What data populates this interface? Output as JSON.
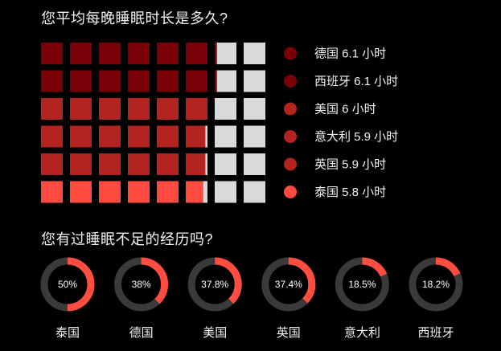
{
  "titles": {
    "sleep_hours": "您平均每晚睡眠时长是多久?",
    "sleep_deprivation": "您有过睡眠不足的经历吗?"
  },
  "colors": {
    "background": "#000000",
    "empty_cell": "#d9d9d9",
    "ring_track": "#3a3a3a",
    "ring_fill": "#ff4d40"
  },
  "chart_data": [
    {
      "type": "waffle",
      "title": "您平均每晚睡眠时长是多久?",
      "max_value": 8,
      "unit": "小时",
      "series": [
        {
          "country": "德国",
          "value": 6.1,
          "label": "德国 6.1 小时",
          "color": "#7a0008"
        },
        {
          "country": "西班牙",
          "value": 6.1,
          "label": "西班牙 6.1 小时",
          "color": "#7a0008"
        },
        {
          "country": "美国",
          "value": 6.0,
          "label": "美国 6 小时",
          "color": "#b3231f"
        },
        {
          "country": "意大利",
          "value": 5.9,
          "label": "意大利 5.9 小时",
          "color": "#b3231f"
        },
        {
          "country": "英国",
          "value": 5.9,
          "label": "英国 5.9 小时",
          "color": "#b3231f"
        },
        {
          "country": "泰国",
          "value": 5.8,
          "label": "泰国 5.8 小时",
          "color": "#ff4a40"
        }
      ]
    },
    {
      "type": "donut",
      "title": "您有过睡眠不足的经历吗?",
      "series": [
        {
          "country": "泰国",
          "value": 50,
          "label": "50%"
        },
        {
          "country": "德国",
          "value": 38,
          "label": "38%"
        },
        {
          "country": "美国",
          "value": 37.8,
          "label": "37.8%"
        },
        {
          "country": "英国",
          "value": 37.4,
          "label": "37.4%"
        },
        {
          "country": "意大利",
          "value": 18.5,
          "label": "18.5%"
        },
        {
          "country": "西班牙",
          "value": 18.2,
          "label": "18.2%"
        }
      ]
    }
  ]
}
